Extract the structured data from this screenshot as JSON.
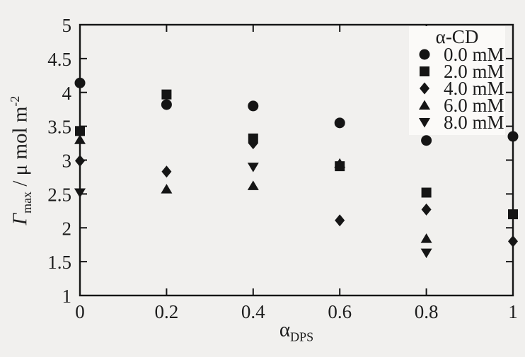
{
  "figure": {
    "background": "#f1f0ee",
    "ink": "#151515",
    "legend_background": "#fbfaf8"
  },
  "chart_data": {
    "type": "scatter",
    "title": "",
    "xlabel": "α_DPS",
    "xlabel_main": "α",
    "xlabel_sub": "DPS",
    "ylabel": "Γ_max / μ mol m^-2",
    "ylabel_symbol": "Γ",
    "ylabel_symbol_sub": "max",
    "ylabel_units": " / μ mol m",
    "ylabel_units_sup": "-2",
    "xlim": [
      0,
      1
    ],
    "ylim": [
      1,
      5
    ],
    "xtick_values": [
      0,
      0.2,
      0.4,
      0.6,
      0.8,
      1
    ],
    "xtick_labels": [
      "0",
      "0.2",
      "0.4",
      "0.6",
      "0.8",
      "1"
    ],
    "ytick_values": [
      1,
      1.5,
      2,
      2.5,
      3,
      3.5,
      4,
      4.5,
      5
    ],
    "ytick_labels": [
      "1",
      "1.5",
      "2",
      "2.5",
      "3",
      "3.5",
      "4",
      "4.5",
      "5"
    ],
    "grid": false,
    "legend_position": "top-right",
    "legend_title": "α-CD",
    "marker_color": "#151515",
    "series": [
      {
        "name": "0.0 mM",
        "marker": "circle",
        "points": [
          [
            0,
            4.14
          ],
          [
            0.2,
            3.82
          ],
          [
            0.4,
            3.8
          ],
          [
            0.6,
            3.55
          ],
          [
            0.8,
            3.29
          ],
          [
            1,
            3.35
          ]
        ]
      },
      {
        "name": "2.0 mM",
        "marker": "square",
        "points": [
          [
            0,
            3.43
          ],
          [
            0.2,
            3.97
          ],
          [
            0.4,
            3.32
          ],
          [
            0.6,
            2.91
          ],
          [
            0.8,
            2.52
          ],
          [
            1,
            2.2
          ]
        ]
      },
      {
        "name": "4.0 mM",
        "marker": "diamond",
        "points": [
          [
            0,
            2.99
          ],
          [
            0.2,
            2.83
          ],
          [
            0.4,
            3.25
          ],
          [
            0.6,
            2.11
          ],
          [
            0.8,
            2.27
          ],
          [
            1,
            1.8
          ]
        ]
      },
      {
        "name": "6.0 mM",
        "marker": "triangle-up",
        "points": [
          [
            0,
            3.3
          ],
          [
            0.2,
            2.57
          ],
          [
            0.4,
            2.62
          ],
          [
            0.6,
            2.95
          ],
          [
            0.8,
            1.84
          ]
        ]
      },
      {
        "name": "8.0 mM",
        "marker": "triangle-down",
        "points": [
          [
            0,
            2.52
          ],
          [
            0.4,
            2.9
          ],
          [
            0.8,
            1.63
          ]
        ]
      }
    ]
  }
}
